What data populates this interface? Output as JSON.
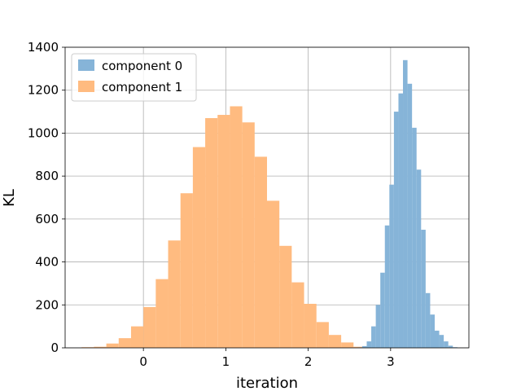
{
  "chart_data": {
    "type": "histogram",
    "xlabel": "iteration",
    "ylabel": "KL",
    "xlim": [
      -0.95,
      3.95
    ],
    "ylim": [
      0,
      1400
    ],
    "xticks": [
      0,
      1,
      2,
      3
    ],
    "yticks": [
      0,
      200,
      400,
      600,
      800,
      1000,
      1200,
      1400
    ],
    "grid": true,
    "legend_position": "upper-left",
    "series": [
      {
        "name": "component 1",
        "color": "#ffbb80",
        "bin_start": -0.75,
        "bin_width": 0.15,
        "counts": [
          3,
          5,
          20,
          45,
          100,
          190,
          320,
          500,
          720,
          935,
          1070,
          1085,
          1125,
          1050,
          890,
          685,
          475,
          305,
          205,
          120,
          60,
          25,
          5,
          2
        ]
      },
      {
        "name": "component 0",
        "color": "#86b4d8",
        "bin_start": 2.6,
        "bin_width": 0.055,
        "counts": [
          2,
          8,
          30,
          100,
          200,
          350,
          570,
          760,
          1100,
          1185,
          1340,
          1230,
          1025,
          830,
          550,
          255,
          155,
          80,
          60,
          30,
          10,
          3
        ]
      }
    ]
  }
}
